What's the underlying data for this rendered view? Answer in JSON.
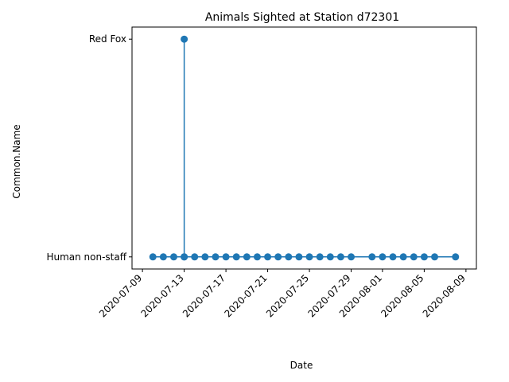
{
  "chart_data": {
    "type": "line",
    "title": "Animals Sighted at Station d72301",
    "xlabel": "Date",
    "ylabel": "Common.Name",
    "categories_y": [
      "Human non-staff",
      "Red Fox"
    ],
    "x_ticks": [
      "2020-07-09",
      "2020-07-13",
      "2020-07-17",
      "2020-07-21",
      "2020-07-25",
      "2020-07-29",
      "2020-08-01",
      "2020-08-05",
      "2020-08-09"
    ],
    "xlim": [
      "2020-07-08",
      "2020-08-10"
    ],
    "series": [
      {
        "color": "#1f77b4",
        "points": [
          {
            "x": "2020-07-10",
            "y": "Human non-staff"
          },
          {
            "x": "2020-07-11",
            "y": "Human non-staff"
          },
          {
            "x": "2020-07-12",
            "y": "Human non-staff"
          },
          {
            "x": "2020-07-13",
            "y": "Human non-staff"
          },
          {
            "x": "2020-07-13",
            "y": "Red Fox"
          },
          {
            "x": "2020-07-13",
            "y": "Human non-staff"
          },
          {
            "x": "2020-07-14",
            "y": "Human non-staff"
          },
          {
            "x": "2020-07-15",
            "y": "Human non-staff"
          },
          {
            "x": "2020-07-16",
            "y": "Human non-staff"
          },
          {
            "x": "2020-07-17",
            "y": "Human non-staff"
          },
          {
            "x": "2020-07-18",
            "y": "Human non-staff"
          },
          {
            "x": "2020-07-19",
            "y": "Human non-staff"
          },
          {
            "x": "2020-07-20",
            "y": "Human non-staff"
          },
          {
            "x": "2020-07-21",
            "y": "Human non-staff"
          },
          {
            "x": "2020-07-22",
            "y": "Human non-staff"
          },
          {
            "x": "2020-07-23",
            "y": "Human non-staff"
          },
          {
            "x": "2020-07-24",
            "y": "Human non-staff"
          },
          {
            "x": "2020-07-25",
            "y": "Human non-staff"
          },
          {
            "x": "2020-07-26",
            "y": "Human non-staff"
          },
          {
            "x": "2020-07-27",
            "y": "Human non-staff"
          },
          {
            "x": "2020-07-28",
            "y": "Human non-staff"
          },
          {
            "x": "2020-07-29",
            "y": "Human non-staff"
          },
          {
            "x": "2020-07-31",
            "y": "Human non-staff"
          },
          {
            "x": "2020-08-01",
            "y": "Human non-staff"
          },
          {
            "x": "2020-08-02",
            "y": "Human non-staff"
          },
          {
            "x": "2020-08-03",
            "y": "Human non-staff"
          },
          {
            "x": "2020-08-04",
            "y": "Human non-staff"
          },
          {
            "x": "2020-08-05",
            "y": "Human non-staff"
          },
          {
            "x": "2020-08-06",
            "y": "Human non-staff"
          },
          {
            "x": "2020-08-08",
            "y": "Human non-staff"
          }
        ]
      }
    ],
    "grid": false,
    "legend": "none"
  }
}
